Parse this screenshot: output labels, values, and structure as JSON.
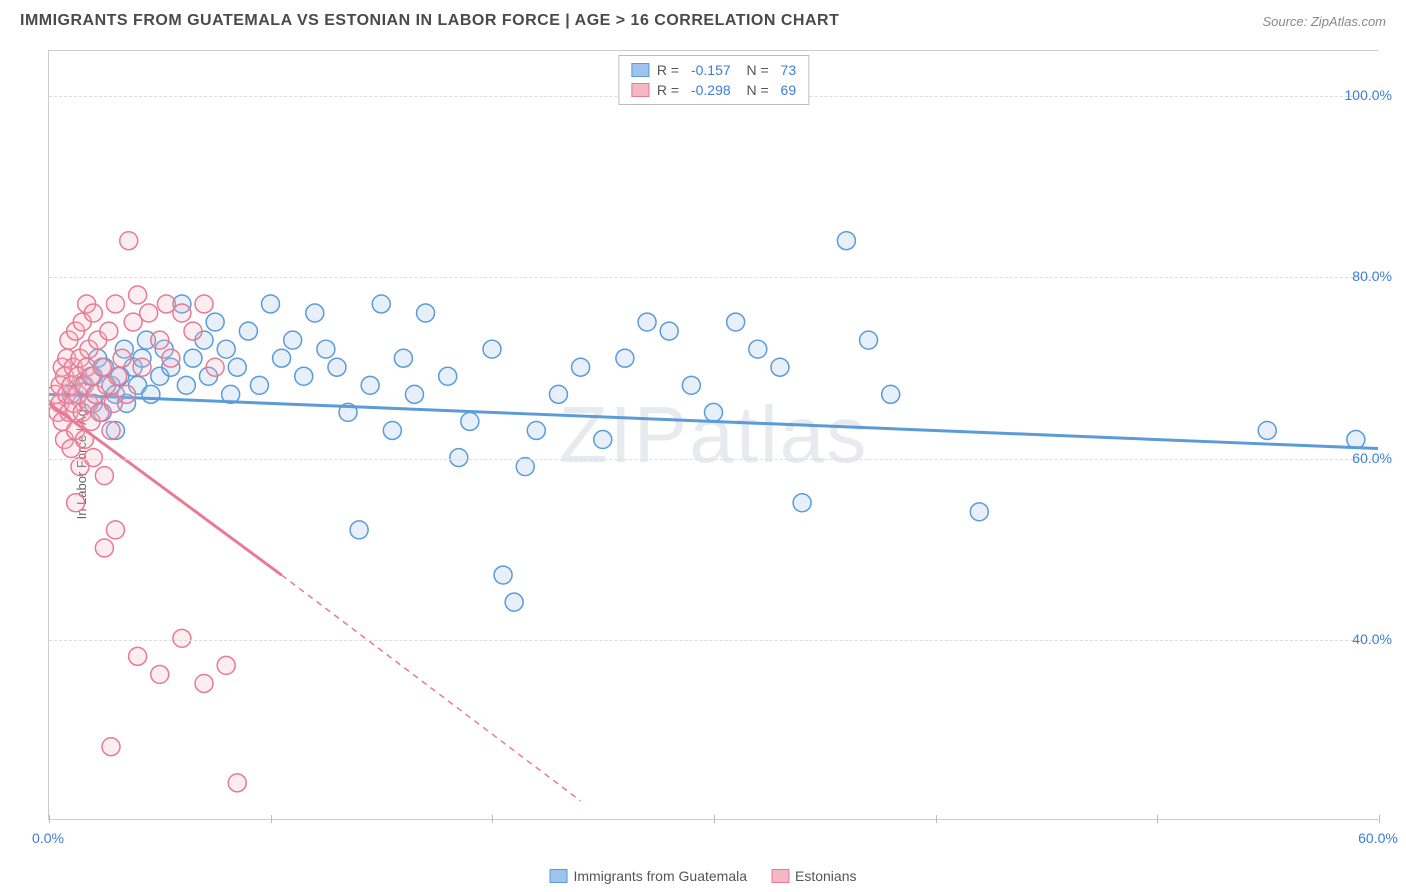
{
  "title": "IMMIGRANTS FROM GUATEMALA VS ESTONIAN IN LABOR FORCE | AGE > 16 CORRELATION CHART",
  "source": "Source: ZipAtlas.com",
  "watermark": "ZIPatlas",
  "ylabel": "In Labor Force | Age > 16",
  "chart": {
    "type": "scatter",
    "xlim": [
      0,
      60
    ],
    "ylim": [
      20,
      105
    ],
    "y_gridlines": [
      40,
      60,
      80,
      100
    ],
    "y_tick_labels": [
      "40.0%",
      "60.0%",
      "80.0%",
      "100.0%"
    ],
    "x_tick_positions": [
      0,
      10,
      20,
      30,
      40,
      50,
      60
    ],
    "x_tick_labels": [
      "0.0%",
      "60.0%"
    ],
    "background_color": "#ffffff",
    "grid_color": "#dddddd",
    "axis_color": "#cccccc",
    "value_color": "#3b7dd8"
  },
  "series": [
    {
      "name": "Immigrants from Guatemala",
      "label": "Immigrants from Guatemala",
      "color_fill": "#9ec3ec",
      "color_stroke": "#5a9bd8",
      "R": "-0.157",
      "N": "73",
      "regression": {
        "x1": 0,
        "y1": 67,
        "x2": 60,
        "y2": 61,
        "solid": true
      },
      "points": [
        [
          1,
          67
        ],
        [
          1.5,
          68
        ],
        [
          2,
          66
        ],
        [
          2,
          69
        ],
        [
          2.2,
          71
        ],
        [
          2.4,
          65
        ],
        [
          2.5,
          70
        ],
        [
          2.8,
          68
        ],
        [
          3,
          67
        ],
        [
          3.2,
          69
        ],
        [
          3.4,
          72
        ],
        [
          3.5,
          66
        ],
        [
          3.8,
          70
        ],
        [
          4,
          68
        ],
        [
          4.2,
          71
        ],
        [
          4.4,
          73
        ],
        [
          4.6,
          67
        ],
        [
          5,
          69
        ],
        [
          5.2,
          72
        ],
        [
          5.5,
          70
        ],
        [
          6,
          77
        ],
        [
          6.2,
          68
        ],
        [
          6.5,
          71
        ],
        [
          7,
          73
        ],
        [
          7.2,
          69
        ],
        [
          7.5,
          75
        ],
        [
          8,
          72
        ],
        [
          8.2,
          67
        ],
        [
          8.5,
          70
        ],
        [
          9,
          74
        ],
        [
          9.5,
          68
        ],
        [
          10,
          77
        ],
        [
          10.5,
          71
        ],
        [
          11,
          73
        ],
        [
          11.5,
          69
        ],
        [
          12,
          76
        ],
        [
          12.5,
          72
        ],
        [
          13,
          70
        ],
        [
          13.5,
          65
        ],
        [
          14,
          52
        ],
        [
          14.5,
          68
        ],
        [
          15,
          77
        ],
        [
          15.5,
          63
        ],
        [
          16,
          71
        ],
        [
          16.5,
          67
        ],
        [
          17,
          76
        ],
        [
          18,
          69
        ],
        [
          18.5,
          60
        ],
        [
          19,
          64
        ],
        [
          20,
          72
        ],
        [
          20.5,
          47
        ],
        [
          21,
          44
        ],
        [
          21.5,
          59
        ],
        [
          22,
          63
        ],
        [
          23,
          67
        ],
        [
          24,
          70
        ],
        [
          25,
          62
        ],
        [
          26,
          71
        ],
        [
          27,
          75
        ],
        [
          28,
          74
        ],
        [
          29,
          68
        ],
        [
          30,
          65
        ],
        [
          31,
          75
        ],
        [
          32,
          72
        ],
        [
          33,
          70
        ],
        [
          34,
          55
        ],
        [
          36,
          84
        ],
        [
          37,
          73
        ],
        [
          38,
          67
        ],
        [
          42,
          54
        ],
        [
          55,
          63
        ],
        [
          59,
          62
        ],
        [
          3,
          63
        ]
      ]
    },
    {
      "name": "Estonians",
      "label": "Estonians",
      "color_fill": "#f4b8c4",
      "color_stroke": "#e77a94",
      "R": "-0.298",
      "N": "69",
      "regression": {
        "x1": 0,
        "y1": 66,
        "x2": 10.5,
        "y2": 47,
        "solid": true
      },
      "regression_ext": {
        "x1": 10.5,
        "y1": 47,
        "x2": 24,
        "y2": 22
      },
      "points": [
        [
          0.3,
          67
        ],
        [
          0.4,
          65
        ],
        [
          0.5,
          68
        ],
        [
          0.5,
          66
        ],
        [
          0.6,
          70
        ],
        [
          0.6,
          64
        ],
        [
          0.7,
          69
        ],
        [
          0.7,
          62
        ],
        [
          0.8,
          71
        ],
        [
          0.8,
          67
        ],
        [
          0.9,
          65
        ],
        [
          0.9,
          73
        ],
        [
          1,
          68
        ],
        [
          1,
          61
        ],
        [
          1.1,
          70
        ],
        [
          1.1,
          66
        ],
        [
          1.2,
          74
        ],
        [
          1.2,
          63
        ],
        [
          1.3,
          69
        ],
        [
          1.3,
          67
        ],
        [
          1.4,
          71
        ],
        [
          1.4,
          59
        ],
        [
          1.5,
          65
        ],
        [
          1.5,
          75
        ],
        [
          1.6,
          68
        ],
        [
          1.6,
          62
        ],
        [
          1.7,
          70
        ],
        [
          1.7,
          77
        ],
        [
          1.8,
          66
        ],
        [
          1.8,
          72
        ],
        [
          1.9,
          64
        ],
        [
          1.9,
          69
        ],
        [
          2,
          76
        ],
        [
          2,
          60
        ],
        [
          2.1,
          67
        ],
        [
          2.2,
          73
        ],
        [
          2.3,
          65
        ],
        [
          2.4,
          70
        ],
        [
          2.5,
          58
        ],
        [
          2.6,
          68
        ],
        [
          2.7,
          74
        ],
        [
          2.8,
          63
        ],
        [
          2.9,
          66
        ],
        [
          3,
          77
        ],
        [
          3.1,
          69
        ],
        [
          3.3,
          71
        ],
        [
          3.5,
          67
        ],
        [
          3.6,
          84
        ],
        [
          3.8,
          75
        ],
        [
          4,
          78
        ],
        [
          4.2,
          70
        ],
        [
          4.5,
          76
        ],
        [
          5,
          73
        ],
        [
          5.3,
          77
        ],
        [
          5.5,
          71
        ],
        [
          6,
          76
        ],
        [
          6.5,
          74
        ],
        [
          7,
          77
        ],
        [
          7.5,
          70
        ],
        [
          2.5,
          50
        ],
        [
          3,
          52
        ],
        [
          4,
          38
        ],
        [
          5,
          36
        ],
        [
          6,
          40
        ],
        [
          7,
          35
        ],
        [
          8,
          37
        ],
        [
          8.5,
          24
        ],
        [
          2.8,
          28
        ],
        [
          1.2,
          55
        ]
      ]
    }
  ],
  "legend_bottom": [
    {
      "label": "Immigrants from Guatemala",
      "fill": "#9ec3ec",
      "stroke": "#5a9bd8"
    },
    {
      "label": "Estonians",
      "fill": "#f4b8c4",
      "stroke": "#e77a94"
    }
  ]
}
